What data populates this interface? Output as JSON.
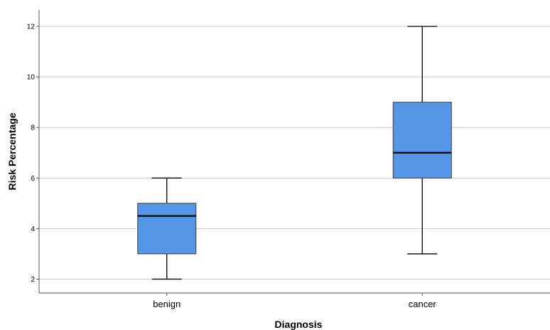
{
  "chart_data": {
    "type": "boxplot",
    "title": "",
    "xlabel": "Diagnosis",
    "ylabel": "Risk Percentage",
    "categories": [
      "benign",
      "cancer"
    ],
    "boxes": [
      {
        "category": "benign",
        "min": 2,
        "q1": 3,
        "median": 4.5,
        "q3": 5,
        "max": 6
      },
      {
        "category": "cancer",
        "min": 3,
        "q1": 6,
        "median": 7,
        "q3": 9,
        "max": 12
      }
    ],
    "y_ticks": [
      2,
      4,
      6,
      8,
      10,
      12
    ],
    "ylim": [
      1.45,
      12.65
    ],
    "grid": true,
    "colors": {
      "box_fill": "#5596e6",
      "box_stroke": "#3c3c3c",
      "grid": "#cccccc",
      "axis": "#555555"
    }
  }
}
